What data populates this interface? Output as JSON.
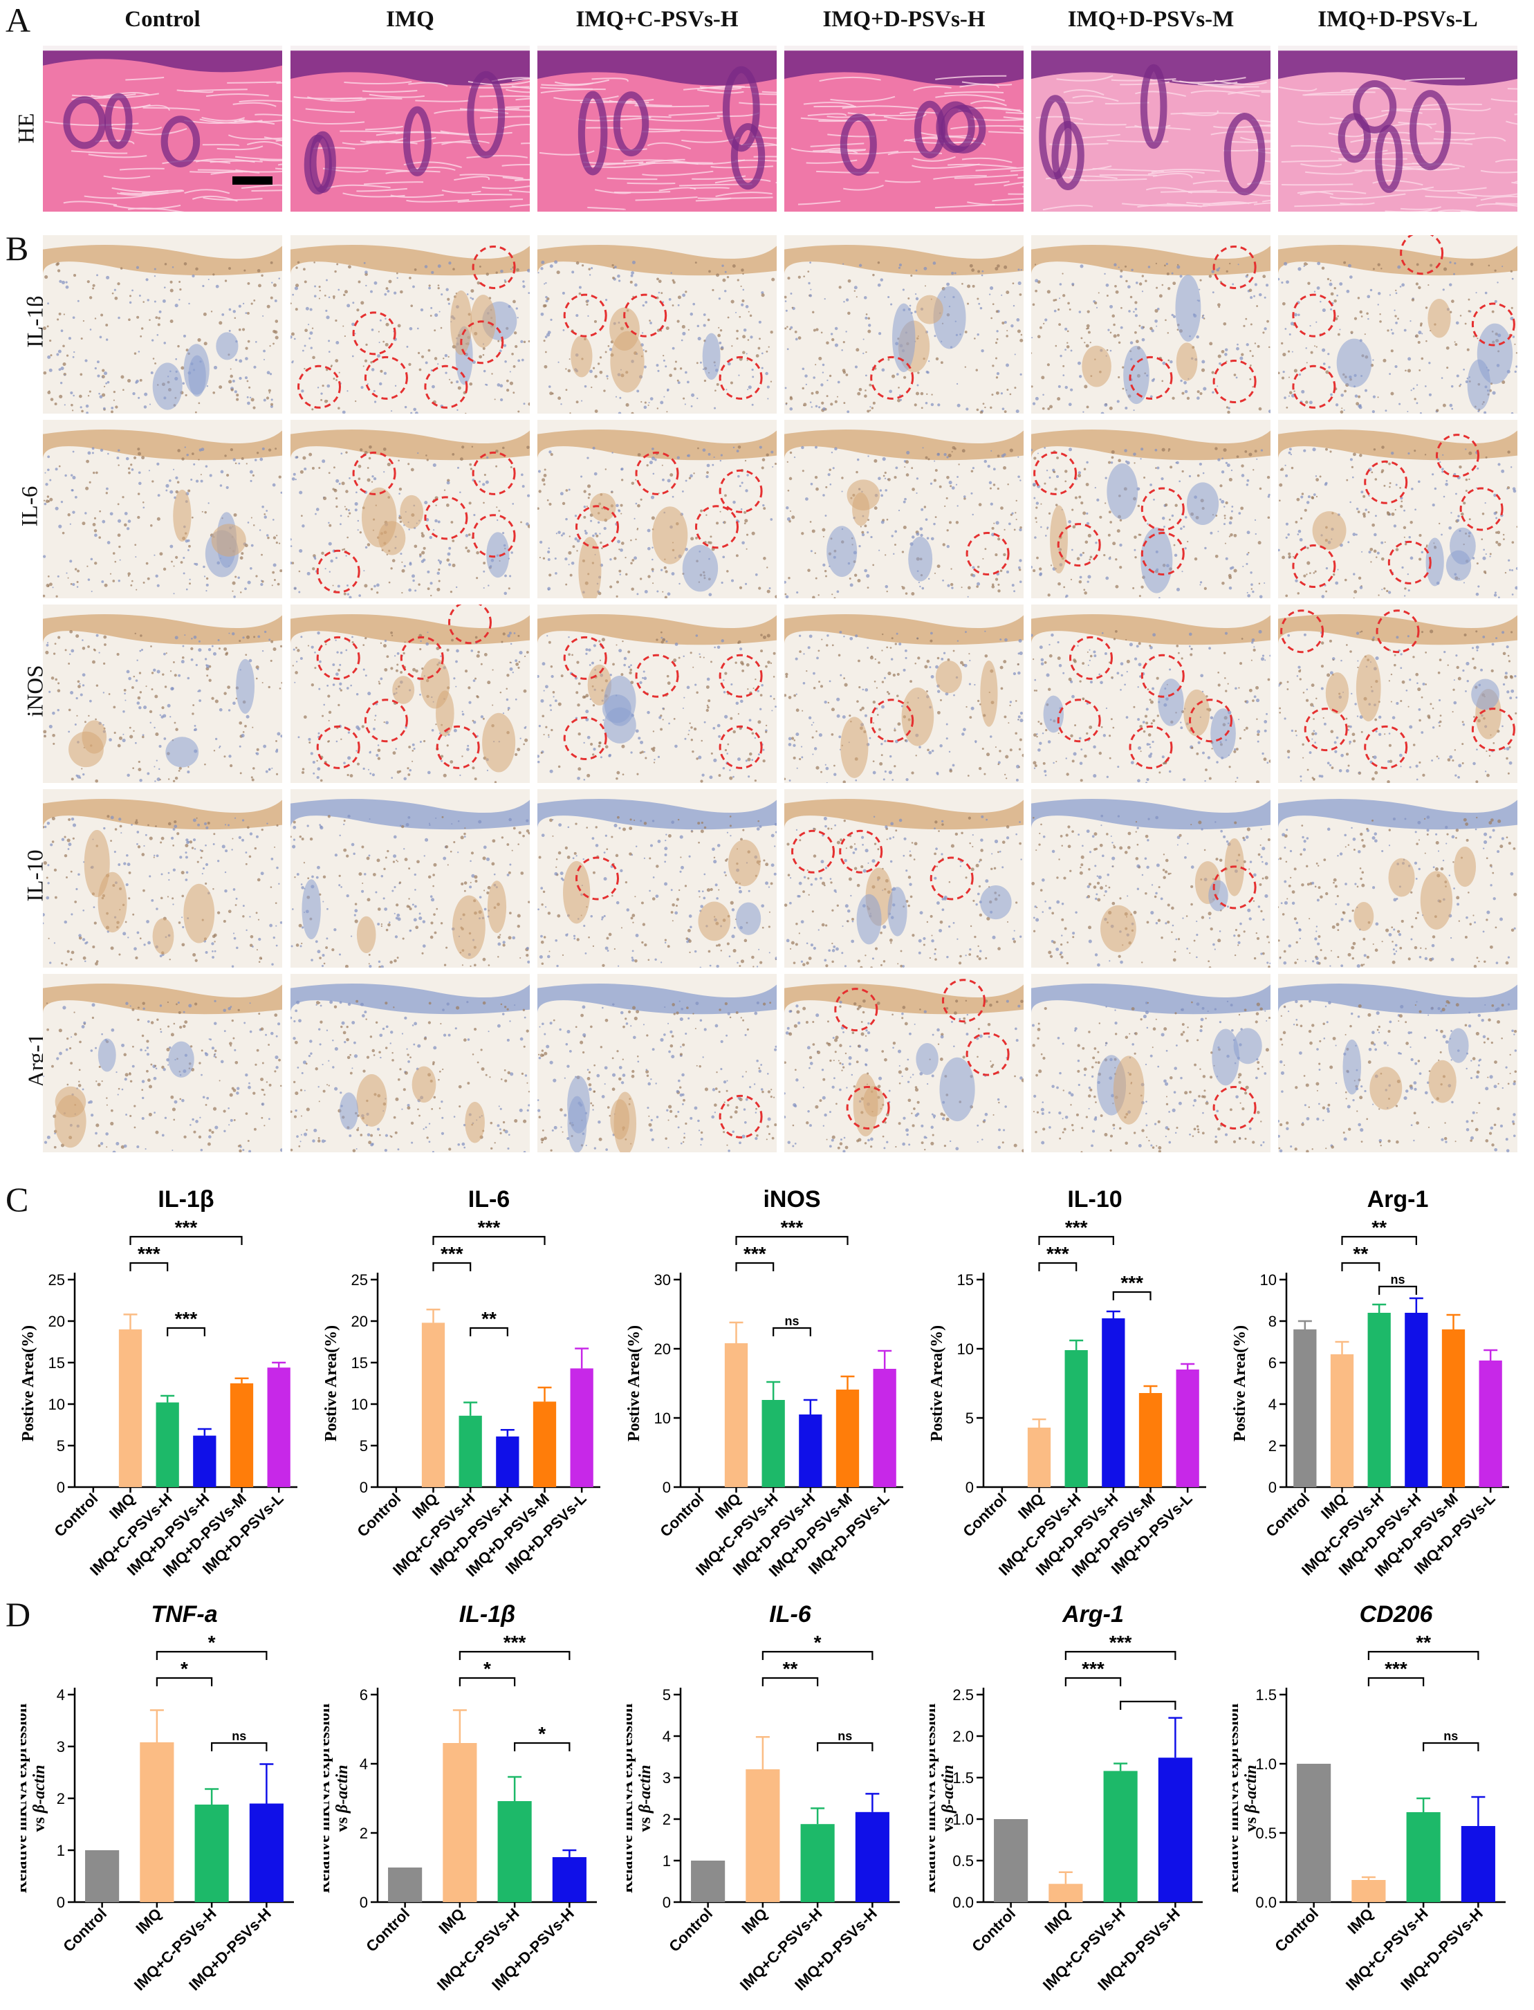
{
  "panels": {
    "a": "A",
    "b": "B",
    "c": "C",
    "d": "D"
  },
  "columns": [
    "Control",
    "IMQ",
    "IMQ+C-PSVs-H",
    "IMQ+D-PSVs-H",
    "IMQ+D-PSVs-M",
    "IMQ+D-PSVs-L"
  ],
  "rows": [
    "HE",
    "IL-1β",
    "IL-6",
    "iNOS",
    "IL-10",
    "Arg-1"
  ],
  "colors": {
    "control": "#8c8c8c",
    "imq": "#fbbc84",
    "c_psvs_h": "#1db969",
    "d_psvs_h": "#1010e8",
    "d_psvs_m": "#ff7d0a",
    "d_psvs_l": "#c728e8",
    "marker": "#e53030",
    "he_pink": "#ef78a8",
    "he_purple": "#7a2a86",
    "ihc_bg": "#f4efe8",
    "ihc_brown": "#d6a877",
    "ihc_blue": "#8da0cf"
  },
  "chart_data": [
    {
      "type": "bar",
      "title": "IL-1β",
      "ylabel": "Postive Area(%)",
      "categories": [
        "Control",
        "IMQ",
        "IMQ+C-PSVs-H",
        "IMQ+D-PSVs-H",
        "IMQ+D-PSVs-M",
        "IMQ+D-PSVs-L"
      ],
      "values": [
        0,
        19.0,
        10.2,
        6.2,
        12.5,
        14.4
      ],
      "errors": [
        0,
        1.8,
        0.8,
        0.8,
        0.6,
        0.6
      ],
      "ylim": [
        0,
        25
      ],
      "yticks": [
        0,
        5,
        10,
        15,
        20,
        25
      ],
      "brackets": [
        {
          "from": 1,
          "to": 4,
          "label": "***"
        },
        {
          "from": 1,
          "to": 2,
          "label": "***"
        },
        {
          "from": 2,
          "to": 3,
          "label": "***"
        }
      ]
    },
    {
      "type": "bar",
      "title": "IL-6",
      "ylabel": "Postive Area(%)",
      "categories": [
        "Control",
        "IMQ",
        "IMQ+C-PSVs-H",
        "IMQ+D-PSVs-H",
        "IMQ+D-PSVs-M",
        "IMQ+D-PSVs-L"
      ],
      "values": [
        0,
        19.8,
        8.6,
        6.1,
        10.3,
        14.3
      ],
      "errors": [
        0,
        1.6,
        1.6,
        0.8,
        1.7,
        2.4
      ],
      "ylim": [
        0,
        25
      ],
      "yticks": [
        0,
        5,
        10,
        15,
        20,
        25
      ],
      "brackets": [
        {
          "from": 1,
          "to": 4,
          "label": "***"
        },
        {
          "from": 1,
          "to": 2,
          "label": "***"
        },
        {
          "from": 2,
          "to": 3,
          "label": "**"
        }
      ]
    },
    {
      "type": "bar",
      "title": "iNOS",
      "ylabel": "Postive Area(%)",
      "categories": [
        "Control",
        "IMQ",
        "IMQ+C-PSVs-H",
        "IMQ+D-PSVs-H",
        "IMQ+D-PSVs-M",
        "IMQ+D-PSVs-L"
      ],
      "values": [
        0,
        20.8,
        12.6,
        10.5,
        14.1,
        17.1
      ],
      "errors": [
        0,
        3.0,
        2.6,
        2.1,
        1.9,
        2.6
      ],
      "ylim": [
        0,
        30
      ],
      "yticks": [
        0,
        10,
        20,
        30
      ],
      "brackets": [
        {
          "from": 1,
          "to": 4,
          "label": "***"
        },
        {
          "from": 1,
          "to": 2,
          "label": "***"
        },
        {
          "from": 2,
          "to": 3,
          "label": "ns"
        }
      ]
    },
    {
      "type": "bar",
      "title": "IL-10",
      "ylabel": "Postive Area(%)",
      "categories": [
        "Control",
        "IMQ",
        "IMQ+C-PSVs-H",
        "IMQ+D-PSVs-H",
        "IMQ+D-PSVs-M",
        "IMQ+D-PSVs-L"
      ],
      "values": [
        0,
        4.3,
        9.9,
        12.2,
        6.8,
        8.5
      ],
      "errors": [
        0,
        0.6,
        0.7,
        0.5,
        0.5,
        0.4
      ],
      "ylim": [
        0,
        15
      ],
      "yticks": [
        0,
        5,
        10,
        15
      ],
      "brackets": [
        {
          "from": 1,
          "to": 3,
          "label": "***"
        },
        {
          "from": 1,
          "to": 2,
          "label": "***"
        },
        {
          "from": 3,
          "to": 4,
          "label": "***"
        }
      ]
    },
    {
      "type": "bar",
      "title": "Arg-1",
      "ylabel": "Postive Area(%)",
      "categories": [
        "Control",
        "IMQ",
        "IMQ+C-PSVs-H",
        "IMQ+D-PSVs-H",
        "IMQ+D-PSVs-M",
        "IMQ+D-PSVs-L"
      ],
      "values": [
        7.6,
        6.4,
        8.4,
        8.4,
        7.6,
        6.1
      ],
      "errors": [
        0.4,
        0.6,
        0.4,
        0.7,
        0.7,
        0.5
      ],
      "ylim": [
        0,
        10
      ],
      "yticks": [
        0,
        2,
        4,
        6,
        8,
        10
      ],
      "brackets": [
        {
          "from": 1,
          "to": 3,
          "label": "**"
        },
        {
          "from": 1,
          "to": 2,
          "label": "**"
        },
        {
          "from": 2,
          "to": 3,
          "label": "ns"
        }
      ]
    },
    {
      "type": "bar",
      "title": "TNF-a",
      "ylabel": "Relative mRNA expression vs β-actin",
      "categories": [
        "Control",
        "IMQ",
        "IMQ+C-PSVs-H",
        "IMQ+D-PSVs-H"
      ],
      "values": [
        1.0,
        3.08,
        1.88,
        1.9
      ],
      "errors": [
        0,
        0.62,
        0.3,
        0.76
      ],
      "ylim": [
        0,
        4
      ],
      "yticks": [
        0,
        1,
        2,
        3,
        4
      ],
      "brackets": [
        {
          "from": 1,
          "to": 3,
          "label": "*"
        },
        {
          "from": 1,
          "to": 2,
          "label": "*"
        },
        {
          "from": 2,
          "to": 3,
          "label": "ns"
        }
      ]
    },
    {
      "type": "bar",
      "title": "IL-1β",
      "ylabel": "Relative mRNA expression vs β-actin",
      "categories": [
        "Control",
        "IMQ",
        "IMQ+C-PSVs-H",
        "IMQ+D-PSVs-H"
      ],
      "values": [
        1.0,
        4.6,
        2.92,
        1.3
      ],
      "errors": [
        0,
        0.95,
        0.7,
        0.2
      ],
      "ylim": [
        0,
        6
      ],
      "yticks": [
        0,
        2,
        4,
        6
      ],
      "brackets": [
        {
          "from": 1,
          "to": 3,
          "label": "***"
        },
        {
          "from": 1,
          "to": 2,
          "label": "*"
        },
        {
          "from": 2,
          "to": 3,
          "label": "*"
        }
      ]
    },
    {
      "type": "bar",
      "title": "IL-6",
      "ylabel": "Relative mRNA expression vs β-actin",
      "categories": [
        "Control",
        "IMQ",
        "IMQ+C-PSVs-H",
        "IMQ+D-PSVs-H"
      ],
      "values": [
        1.0,
        3.2,
        1.88,
        2.17
      ],
      "errors": [
        0,
        0.78,
        0.38,
        0.44
      ],
      "ylim": [
        0,
        5
      ],
      "yticks": [
        0,
        1,
        2,
        3,
        4,
        5
      ],
      "brackets": [
        {
          "from": 1,
          "to": 3,
          "label": "*"
        },
        {
          "from": 1,
          "to": 2,
          "label": "**"
        },
        {
          "from": 2,
          "to": 3,
          "label": "ns"
        }
      ]
    },
    {
      "type": "bar",
      "title": "Arg-1",
      "ylabel": "Relative mRNA expression vs β-actin",
      "categories": [
        "Control",
        "IMQ",
        "IMQ+C-PSVs-H",
        "IMQ+D-PSVs-H"
      ],
      "values": [
        1.0,
        0.22,
        1.58,
        1.74
      ],
      "errors": [
        0,
        0.14,
        0.09,
        0.48
      ],
      "ylim": [
        0,
        2.5
      ],
      "yticks": [
        0.0,
        0.5,
        1.0,
        1.5,
        2.0,
        2.5
      ],
      "brackets": [
        {
          "from": 1,
          "to": 3,
          "label": "***"
        },
        {
          "from": 1,
          "to": 2,
          "label": "***"
        },
        {
          "from": 2,
          "to": 3,
          "label": ""
        }
      ]
    },
    {
      "type": "bar",
      "title": "CD206",
      "ylabel": "Relative mRNA expression vs β-actin",
      "categories": [
        "Control",
        "IMQ",
        "IMQ+C-PSVs-H",
        "IMQ+D-PSVs-H"
      ],
      "values": [
        1.0,
        0.16,
        0.65,
        0.55
      ],
      "errors": [
        0,
        0.02,
        0.1,
        0.21
      ],
      "ylim": [
        0,
        1.5
      ],
      "yticks": [
        0.0,
        0.5,
        1.0,
        1.5
      ],
      "brackets": [
        {
          "from": 1,
          "to": 3,
          "label": "**"
        },
        {
          "from": 1,
          "to": 2,
          "label": "***"
        },
        {
          "from": 2,
          "to": 3,
          "label": "ns"
        }
      ]
    }
  ]
}
